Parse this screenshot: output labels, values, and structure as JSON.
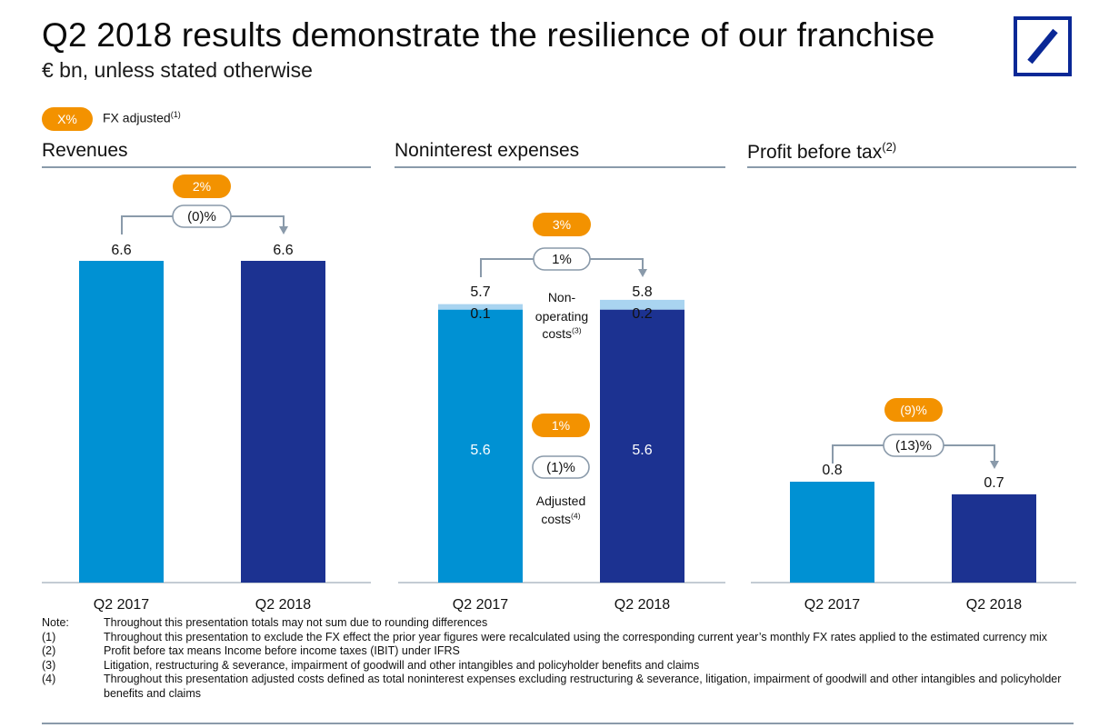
{
  "title": "Q2 2018 results demonstrate the resilience of our franchise",
  "subtitle": "€ bn, unless stated otherwise",
  "legend": {
    "pill": "X%",
    "label": "FX adjusted",
    "footnote": "(1)"
  },
  "colors": {
    "light_blue": "#0091d3",
    "dark_blue": "#1c3291",
    "pale_blue": "#a9d4f0",
    "orange": "#f39200",
    "gray": "#8a9aaa",
    "logo_blue": "#0a2896"
  },
  "panels": [
    {
      "title": "Revenues",
      "footnote": ""
    },
    {
      "title": "Noninterest expenses",
      "footnote": ""
    },
    {
      "title": "Profit before tax",
      "footnote": "(2)"
    }
  ],
  "chart_data": [
    {
      "type": "bar",
      "title": "Revenues",
      "categories": [
        "Q2 2017",
        "Q2 2018"
      ],
      "values": [
        6.6,
        6.6
      ],
      "value_labels": [
        "6.6",
        "6.6"
      ],
      "fx_adjusted_change": "2%",
      "reported_change": "(0)%"
    },
    {
      "type": "bar",
      "title": "Noninterest expenses",
      "categories": [
        "Q2 2017",
        "Q2 2018"
      ],
      "series": [
        {
          "name": "Adjusted costs",
          "values": [
            5.6,
            5.6
          ],
          "labels": [
            "5.6",
            "5.6"
          ]
        },
        {
          "name": "Non-operating costs",
          "values": [
            0.1,
            0.2
          ],
          "labels": [
            "0.1",
            "0.2"
          ]
        }
      ],
      "totals": [
        5.7,
        5.8
      ],
      "total_labels": [
        "5.7",
        "5.8"
      ],
      "fx_adjusted_change": "3%",
      "reported_change": "1%",
      "series_annotations": {
        "non_operating": {
          "label_line1": "Non-",
          "label_line2": "operating",
          "label_line3": "costs",
          "footnote": "(3)"
        },
        "adjusted": {
          "fx_adjusted_change": "1%",
          "reported_change": "(1)%",
          "label_line1": "Adjusted",
          "label_line2": "costs",
          "footnote": "(4)"
        }
      }
    },
    {
      "type": "bar",
      "title": "Profit before tax",
      "categories": [
        "Q2 2017",
        "Q2 2018"
      ],
      "values": [
        0.8,
        0.7
      ],
      "value_labels": [
        "0.8",
        "0.7"
      ],
      "fx_adjusted_change": "(9)%",
      "reported_change": "(13)%"
    }
  ],
  "notes": [
    {
      "key": "Note:",
      "text": "Throughout this presentation totals may not sum due to rounding differences"
    },
    {
      "key": "(1)",
      "text": "Throughout this presentation to exclude the FX effect the prior year figures were recalculated using the corresponding current year’s monthly FX rates applied to the estimated currency mix"
    },
    {
      "key": "(2)",
      "text": "Profit before tax means Income before income taxes (IBIT) under IFRS"
    },
    {
      "key": "(3)",
      "text": "Litigation, restructuring & severance, impairment of goodwill and other intangibles and policyholder benefits and claims"
    },
    {
      "key": "(4)",
      "text": "Throughout this presentation adjusted costs defined as total noninterest expenses excluding restructuring & severance, litigation, impairment of goodwill and other intangibles and policyholder benefits and claims"
    }
  ]
}
